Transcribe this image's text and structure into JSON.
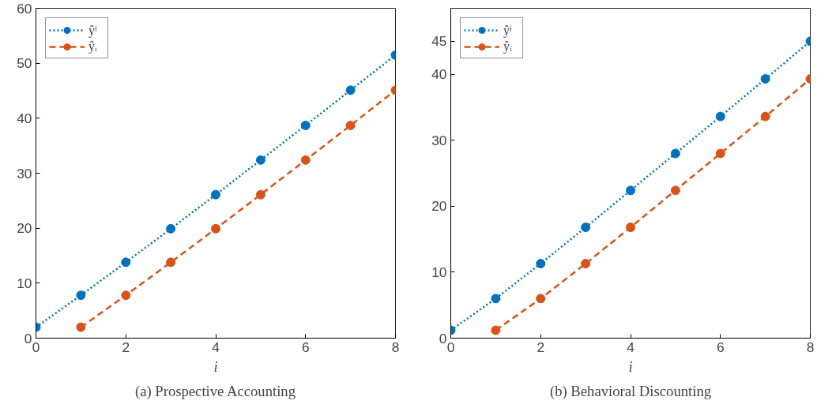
{
  "chart_data": [
    {
      "type": "line",
      "title": "(a) Prospective Accounting",
      "xlabel": "i",
      "xlim": [
        0,
        8
      ],
      "xticks": [
        0,
        2,
        4,
        6,
        8
      ],
      "ylim": [
        0,
        60
      ],
      "yticks": [
        0,
        10,
        20,
        30,
        40,
        50,
        60
      ],
      "grid": false,
      "legend": "top left",
      "marker": "circle",
      "series": [
        {
          "name": "ŷⁱ",
          "color": "#0072bd",
          "line_style": "dotted",
          "x": [
            0,
            1,
            2,
            3,
            4,
            5,
            6,
            7,
            8
          ],
          "values": [
            2,
            7.8,
            13.8,
            19.9,
            26.1,
            32.4,
            38.7,
            45.1,
            51.5
          ]
        },
        {
          "name": "ŷᵢ",
          "color": "#d95319",
          "line_style": "dashed",
          "x": [
            1,
            2,
            3,
            4,
            5,
            6,
            7,
            8
          ],
          "values": [
            2,
            7.8,
            13.8,
            19.9,
            26.1,
            32.4,
            38.7,
            45.1
          ]
        }
      ]
    },
    {
      "type": "line",
      "title": "(b) Behavioral Discounting",
      "xlabel": "i",
      "xlim": [
        0,
        8
      ],
      "xticks": [
        0,
        2,
        4,
        6,
        8
      ],
      "ylim": [
        0,
        50
      ],
      "yticks": [
        0,
        10,
        20,
        30,
        40,
        45
      ],
      "grid": false,
      "legend": "top left",
      "marker": "circle",
      "series": [
        {
          "name": "ŷⁱ",
          "color": "#0072bd",
          "line_style": "dotted",
          "x": [
            0,
            1,
            2,
            3,
            4,
            5,
            6,
            7,
            8
          ],
          "values": [
            1.2,
            6.0,
            11.3,
            16.8,
            22.4,
            28.0,
            33.6,
            39.3,
            45.0
          ]
        },
        {
          "name": "ŷᵢ",
          "color": "#d95319",
          "line_style": "dashed",
          "x": [
            1,
            2,
            3,
            4,
            5,
            6,
            7,
            8
          ],
          "values": [
            1.2,
            6.0,
            11.3,
            16.8,
            22.4,
            28.0,
            33.6,
            39.3
          ]
        }
      ]
    }
  ]
}
